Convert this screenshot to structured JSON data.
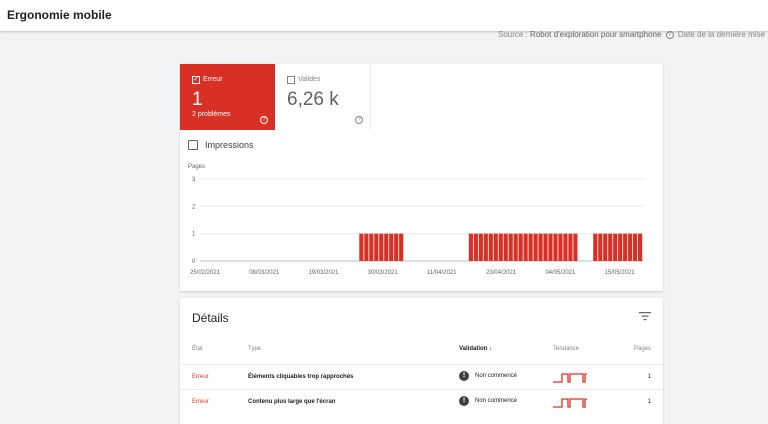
{
  "header": {
    "title": "Ergonomie mobile",
    "source_label": "Source : ",
    "source_value": "Robot d'exploration pour smartphone",
    "last_update_label": "Date de la dernière mise"
  },
  "summary": {
    "error": {
      "label": "Erreur",
      "value": "1",
      "sub": "2 problèmes",
      "checked": true,
      "color": "#d93025"
    },
    "valid": {
      "label": "Valides",
      "value": "6,26 k",
      "checked": false
    }
  },
  "impressions_label": "Impressions",
  "chart_data": {
    "type": "bar",
    "ylabel": "Pages",
    "ylim": [
      0,
      3
    ],
    "yticks": [
      0,
      1,
      2,
      3
    ],
    "xtick_labels": [
      "25/02/2021",
      "08/03/2021",
      "19/03/2021",
      "30/03/2021",
      "11/04/2021",
      "23/04/2021",
      "04/05/2021",
      "15/05/2021"
    ],
    "start_date": "2021-02-25",
    "end_date": "2021-05-25",
    "series": [
      {
        "color": "#d93025",
        "values": [
          {
            "from": "2021-03-29",
            "to": "2021-04-07",
            "value": 1
          },
          {
            "from": "2021-04-20",
            "to": "2021-05-12",
            "value": 1
          },
          {
            "from": "2021-05-15",
            "to": "2021-05-25",
            "value": 1
          }
        ]
      }
    ]
  },
  "details": {
    "title": "Détails",
    "columns": {
      "state": "État",
      "type": "Type",
      "validation": "Validation",
      "trend": "Tendance",
      "pages": "Pages"
    },
    "rows": [
      {
        "state": "Erreur",
        "type": "Éléments cliquables trop rapprochés",
        "validation": "Non commencé",
        "pages": "1"
      },
      {
        "state": "Erreur",
        "type": "Contenu plus large que l'écran",
        "validation": "Non commencé",
        "pages": "1"
      }
    ]
  }
}
